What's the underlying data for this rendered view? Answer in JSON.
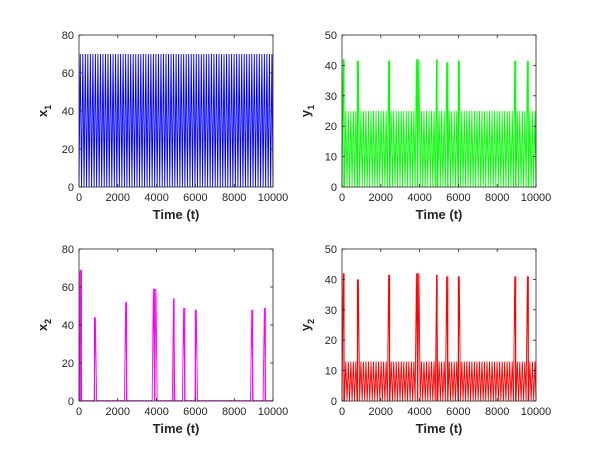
{
  "chart_data": [
    {
      "type": "line",
      "id": "x1",
      "title": "",
      "xlabel": "Time (t)",
      "ylabel_main": "x",
      "ylabel_sub": "1",
      "xlim": [
        0,
        10000
      ],
      "ylim": [
        0,
        80
      ],
      "xticks": [
        0,
        2000,
        4000,
        6000,
        8000,
        10000
      ],
      "yticks": [
        0,
        20,
        40,
        60,
        80
      ],
      "color": "#0000ff",
      "series": [
        {
          "oscillation": {
            "period": 130,
            "min": 0,
            "max": 70
          },
          "spikes": []
        }
      ]
    },
    {
      "type": "line",
      "id": "y1",
      "title": "",
      "xlabel": "Time (t)",
      "ylabel_main": "y",
      "ylabel_sub": "1",
      "xlim": [
        0,
        10000
      ],
      "ylim": [
        0,
        50
      ],
      "xticks": [
        0,
        2000,
        4000,
        6000,
        8000,
        10000
      ],
      "yticks": [
        0,
        10,
        20,
        30,
        40,
        50
      ],
      "color": "#00ff00",
      "series": [
        {
          "oscillation": {
            "period": 130,
            "min": 0,
            "max": 25
          },
          "spikes": [
            {
              "x": 100,
              "y": 42
            },
            {
              "x": 800,
              "y": 41.5
            },
            {
              "x": 2450,
              "y": 41.5
            },
            {
              "x": 3900,
              "y": 42
            },
            {
              "x": 4900,
              "y": 42
            },
            {
              "x": 5450,
              "y": 41
            },
            {
              "x": 6000,
              "y": 41.5
            },
            {
              "x": 8950,
              "y": 41.5
            },
            {
              "x": 9600,
              "y": 41.5
            }
          ]
        }
      ]
    },
    {
      "type": "line",
      "id": "x2",
      "title": "",
      "xlabel": "Time (t)",
      "ylabel_main": "x",
      "ylabel_sub": "2",
      "xlim": [
        0,
        10000
      ],
      "ylim": [
        0,
        80
      ],
      "xticks": [
        0,
        2000,
        4000,
        6000,
        8000,
        10000
      ],
      "yticks": [
        0,
        20,
        40,
        60,
        80
      ],
      "color": "#ff00ff",
      "series": [
        {
          "oscillation": {
            "period": 130,
            "min": 0,
            "max": 0.3
          },
          "spikes": [
            {
              "x": 60,
              "y": 68
            },
            {
              "x": 120,
              "y": 69
            },
            {
              "x": 800,
              "y": 44
            },
            {
              "x": 2450,
              "y": 52
            },
            {
              "x": 3900,
              "y": 59
            },
            {
              "x": 4900,
              "y": 54
            },
            {
              "x": 5450,
              "y": 49
            },
            {
              "x": 6000,
              "y": 48
            },
            {
              "x": 8950,
              "y": 48
            },
            {
              "x": 9600,
              "y": 49
            }
          ]
        }
      ]
    },
    {
      "type": "line",
      "id": "y2",
      "title": "",
      "xlabel": "Time (t)",
      "ylabel_main": "y",
      "ylabel_sub": "2",
      "xlim": [
        0,
        10000
      ],
      "ylim": [
        0,
        50
      ],
      "xticks": [
        0,
        2000,
        4000,
        6000,
        8000,
        10000
      ],
      "yticks": [
        0,
        10,
        20,
        30,
        40,
        50
      ],
      "color": "#ff0000",
      "series": [
        {
          "oscillation": {
            "period": 130,
            "min": 0,
            "max": 13
          },
          "spikes": [
            {
              "x": 100,
              "y": 42
            },
            {
              "x": 800,
              "y": 40
            },
            {
              "x": 2450,
              "y": 41.5
            },
            {
              "x": 3900,
              "y": 42
            },
            {
              "x": 4900,
              "y": 41.5
            },
            {
              "x": 5450,
              "y": 41
            },
            {
              "x": 6000,
              "y": 41
            },
            {
              "x": 8950,
              "y": 41
            },
            {
              "x": 9600,
              "y": 41
            }
          ]
        }
      ]
    }
  ]
}
